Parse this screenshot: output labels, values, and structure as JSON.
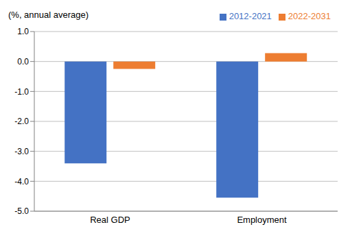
{
  "chart_data": {
    "type": "bar",
    "y_label": "(%, annual average)",
    "categories": [
      "Real GDP",
      "Employment"
    ],
    "series": [
      {
        "name": "2012-2021",
        "color": "#4472c4",
        "values": [
          -3.4,
          -4.55
        ]
      },
      {
        "name": "2022-2031",
        "color": "#ed7d31",
        "values": [
          -0.25,
          0.28
        ]
      }
    ],
    "ylim": [
      -5,
      1
    ],
    "yticks": [
      {
        "value": -5,
        "label": "-5.0"
      },
      {
        "value": -4,
        "label": "-4.0"
      },
      {
        "value": -3,
        "label": "-3.0"
      },
      {
        "value": -2,
        "label": "-2.0"
      },
      {
        "value": -1,
        "label": "-1.0"
      },
      {
        "value": 0,
        "label": "0.0"
      },
      {
        "value": 1,
        "label": "1.0"
      }
    ],
    "grid": true,
    "legend": "top"
  }
}
